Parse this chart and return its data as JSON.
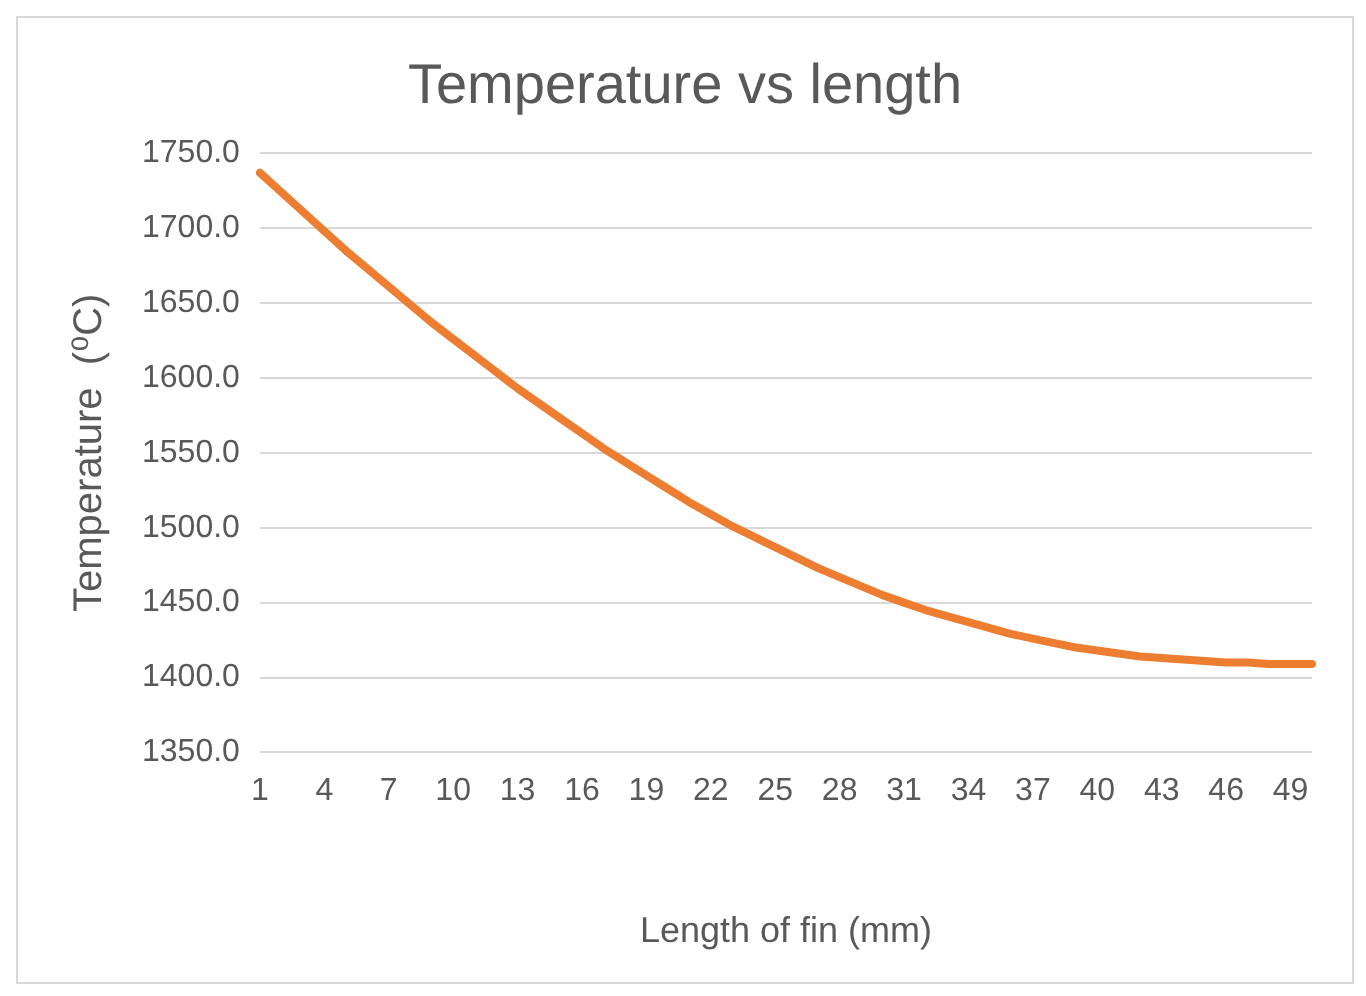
{
  "chart_data": {
    "type": "line",
    "title": "Temperature vs length",
    "xlabel": "Length of fin (mm)",
    "ylabel": "Temperature  (⁰C)",
    "categories": [
      "1",
      null,
      null,
      "4",
      null,
      null,
      "7",
      null,
      null,
      "10",
      null,
      null,
      "13",
      null,
      null,
      "16",
      null,
      null,
      "19",
      null,
      null,
      "22",
      null,
      null,
      "25",
      null,
      null,
      "28",
      null,
      null,
      "31",
      null,
      null,
      "34",
      null,
      null,
      "37",
      null,
      null,
      "40",
      null,
      null,
      "43",
      null,
      null,
      "46",
      null,
      null,
      "49",
      null
    ],
    "series": [
      {
        "color": "#ed7d31",
        "values": [
          1737,
          1724,
          1711,
          1698,
          1685,
          1673,
          1661,
          1649,
          1637,
          1626,
          1615,
          1604,
          1593,
          1583,
          1573,
          1563,
          1553,
          1544,
          1535,
          1526,
          1517,
          1509,
          1501,
          1494,
          1487,
          1480,
          1473,
          1467,
          1461,
          1455,
          1450,
          1445,
          1441,
          1437,
          1433,
          1429,
          1426,
          1423,
          1420,
          1418,
          1416,
          1414,
          1413,
          1412,
          1411,
          1410,
          1410,
          1409,
          1409,
          1409
        ]
      }
    ],
    "ylim": [
      1350,
      1750
    ],
    "yticks": [
      {
        "value": 1350,
        "label": "1350.0"
      },
      {
        "value": 1400,
        "label": "1400.0"
      },
      {
        "value": 1450,
        "label": "1450.0"
      },
      {
        "value": 1500,
        "label": "1500.0"
      },
      {
        "value": 1550,
        "label": "1550.0"
      },
      {
        "value": 1600,
        "label": "1600.0"
      },
      {
        "value": 1650,
        "label": "1650.0"
      },
      {
        "value": 1700,
        "label": "1700.0"
      },
      {
        "value": 1750,
        "label": "1750.0"
      }
    ],
    "grid": "y",
    "legend": false,
    "marker": "none",
    "line_style": "solid"
  }
}
